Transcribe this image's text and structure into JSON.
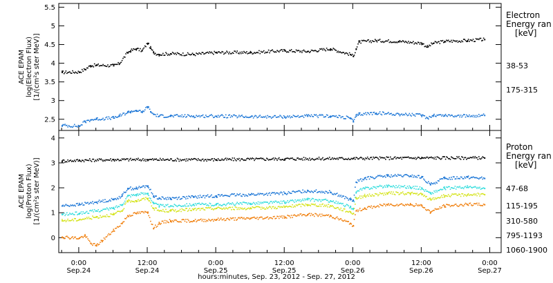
{
  "figure": {
    "xlabel": "hours:minutes, Sep. 23, 2012 - Sep. 27, 2012",
    "x_ticks": [
      {
        "hour": 0,
        "time": "0:00",
        "date": "Sep.24"
      },
      {
        "hour": 12,
        "time": "12:00",
        "date": "Sep.24"
      },
      {
        "hour": 24,
        "time": "0:00",
        "date": "Sep.25"
      },
      {
        "hour": 36,
        "time": "12:00",
        "date": "Sep.25"
      },
      {
        "hour": 48,
        "time": "0:00",
        "date": "Sep.26"
      },
      {
        "hour": 60,
        "time": "12:00",
        "date": "Sep.26"
      },
      {
        "hour": 72,
        "time": "0:00",
        "date": "Sep.27"
      }
    ],
    "xlim_hours_from_sep24_0000": [
      -3.5,
      74.0
    ]
  },
  "chart_data": [
    {
      "type": "scatter",
      "panel": "electron",
      "ylabel": [
        "ACE EPAM",
        "log(Electron Flux)",
        "[1/(cm²s ster MeV)]"
      ],
      "ylim": [
        2.2,
        5.6
      ],
      "yticks": [
        2.5,
        3.0,
        3.5,
        4.0,
        4.5,
        5.0,
        5.5
      ],
      "legend_title": [
        "Electron",
        "Energy ran",
        "[keV]"
      ],
      "series": [
        {
          "name": "38-53",
          "color": "#000000",
          "x": [
            -3.0,
            0.0,
            1.0,
            2.0,
            3.0,
            6.0,
            7.0,
            8.5,
            9.0,
            10.0,
            11.0,
            12.0,
            12.5,
            13.0,
            14.0,
            16.0,
            20.0,
            24.0,
            30.0,
            36.0,
            40.0,
            44.0,
            47.5,
            48.0,
            48.5,
            49.0,
            52.0,
            56.0,
            60.0,
            61.0,
            62.0,
            64.0,
            68.0,
            71.0
          ],
          "y": [
            3.77,
            3.78,
            3.85,
            3.95,
            3.96,
            3.95,
            4.0,
            4.3,
            4.35,
            4.4,
            4.35,
            4.55,
            4.42,
            4.3,
            4.25,
            4.27,
            4.25,
            4.3,
            4.3,
            4.35,
            4.33,
            4.4,
            4.25,
            4.2,
            4.4,
            4.58,
            4.62,
            4.6,
            4.55,
            4.45,
            4.55,
            4.6,
            4.62,
            4.65
          ]
        },
        {
          "name": "175-315",
          "color": "#1a75d6",
          "x": [
            -3.0,
            0.0,
            1.0,
            2.0,
            3.0,
            6.0,
            7.0,
            8.5,
            9.0,
            10.0,
            11.0,
            12.0,
            12.5,
            13.0,
            14.0,
            16.0,
            20.0,
            24.0,
            30.0,
            36.0,
            40.0,
            44.0,
            47.5,
            48.0,
            48.5,
            49.0,
            52.0,
            56.0,
            60.0,
            61.0,
            62.0,
            64.0,
            68.0,
            71.0
          ],
          "y": [
            2.35,
            2.33,
            2.45,
            2.5,
            2.52,
            2.55,
            2.6,
            2.7,
            2.72,
            2.75,
            2.7,
            2.85,
            2.72,
            2.65,
            2.6,
            2.6,
            2.6,
            2.6,
            2.58,
            2.58,
            2.6,
            2.6,
            2.55,
            2.45,
            2.6,
            2.65,
            2.68,
            2.65,
            2.62,
            2.55,
            2.62,
            2.62,
            2.6,
            2.62
          ]
        }
      ]
    },
    {
      "type": "scatter",
      "panel": "proton",
      "ylabel": [
        "ACE EPAM",
        "log(Proton Flux)",
        "[1/(cm²s ster MeV)]"
      ],
      "ylim": [
        -0.6,
        4.3
      ],
      "yticks": [
        0,
        1,
        2,
        3,
        4
      ],
      "legend_title": [
        "Proton",
        "Energy ran",
        "[keV]"
      ],
      "series": [
        {
          "name": "47-68",
          "color": "#000000",
          "x": [
            -3.0,
            0.0,
            6.0,
            12.0,
            24.0,
            36.0,
            48.0,
            60.0,
            71.0
          ],
          "y": [
            3.1,
            3.12,
            3.15,
            3.15,
            3.15,
            3.18,
            3.2,
            3.22,
            3.22
          ]
        },
        {
          "name": "115-195",
          "color": "#1a75d6",
          "x": [
            -3.0,
            0.0,
            3.0,
            6.0,
            7.5,
            8.5,
            10.0,
            12.0,
            13.0,
            14.0,
            16.0,
            20.0,
            24.0,
            30.0,
            36.0,
            40.0,
            44.0,
            47.5,
            48.0,
            48.5,
            50.0,
            54.0,
            58.0,
            60.0,
            61.5,
            64.0,
            68.0,
            71.0
          ],
          "y": [
            1.3,
            1.35,
            1.45,
            1.55,
            1.7,
            2.0,
            2.0,
            2.1,
            1.7,
            1.6,
            1.6,
            1.65,
            1.7,
            1.75,
            1.8,
            1.9,
            1.85,
            1.55,
            1.5,
            2.25,
            2.4,
            2.5,
            2.5,
            2.45,
            2.15,
            2.4,
            2.45,
            2.4
          ]
        },
        {
          "name": "310-580",
          "color": "#33dddd",
          "x": [
            -3.0,
            0.0,
            3.0,
            6.0,
            7.5,
            8.5,
            10.0,
            12.0,
            13.0,
            14.0,
            16.0,
            20.0,
            24.0,
            30.0,
            36.0,
            40.0,
            44.0,
            47.5,
            48.0,
            48.5,
            50.0,
            54.0,
            58.0,
            60.0,
            61.5,
            64.0,
            68.0,
            71.0
          ],
          "y": [
            0.95,
            1.0,
            1.1,
            1.2,
            1.35,
            1.7,
            1.75,
            1.8,
            1.4,
            1.3,
            1.3,
            1.35,
            1.35,
            1.4,
            1.45,
            1.55,
            1.5,
            1.25,
            1.2,
            1.85,
            2.0,
            2.1,
            2.05,
            2.0,
            1.8,
            2.0,
            2.05,
            2.0
          ]
        },
        {
          "name": "795-1193",
          "color": "#d4e31a",
          "x": [
            -3.0,
            0.0,
            3.0,
            6.0,
            7.5,
            8.5,
            10.0,
            12.0,
            13.0,
            14.0,
            16.0,
            20.0,
            24.0,
            30.0,
            36.0,
            40.0,
            44.0,
            47.5,
            48.0,
            48.5,
            50.0,
            54.0,
            58.0,
            60.0,
            61.5,
            64.0,
            68.0,
            71.0
          ],
          "y": [
            0.7,
            0.75,
            0.85,
            0.95,
            1.1,
            1.5,
            1.5,
            1.6,
            1.2,
            1.1,
            1.1,
            1.15,
            1.2,
            1.2,
            1.25,
            1.35,
            1.3,
            1.05,
            1.0,
            1.6,
            1.7,
            1.8,
            1.8,
            1.75,
            1.55,
            1.7,
            1.75,
            1.75
          ]
        },
        {
          "name": "1060-1900",
          "color": "#f07f0d",
          "x": [
            -3.0,
            0.0,
            1.0,
            2.0,
            3.0,
            4.0,
            6.0,
            7.5,
            8.5,
            10.0,
            12.0,
            13.0,
            14.0,
            16.0,
            20.0,
            24.0,
            30.0,
            36.0,
            40.0,
            44.0,
            47.5,
            48.0,
            48.5,
            50.0,
            54.0,
            58.0,
            60.0,
            61.5,
            64.0,
            68.0,
            71.0
          ],
          "y": [
            0.05,
            0.0,
            0.1,
            -0.2,
            -0.3,
            -0.1,
            0.3,
            0.6,
            0.9,
            1.0,
            1.05,
            0.4,
            0.6,
            0.7,
            0.7,
            0.75,
            0.8,
            0.85,
            0.95,
            0.9,
            0.6,
            0.5,
            1.1,
            1.2,
            1.35,
            1.35,
            1.3,
            1.05,
            1.3,
            1.35,
            1.35
          ]
        }
      ]
    }
  ]
}
